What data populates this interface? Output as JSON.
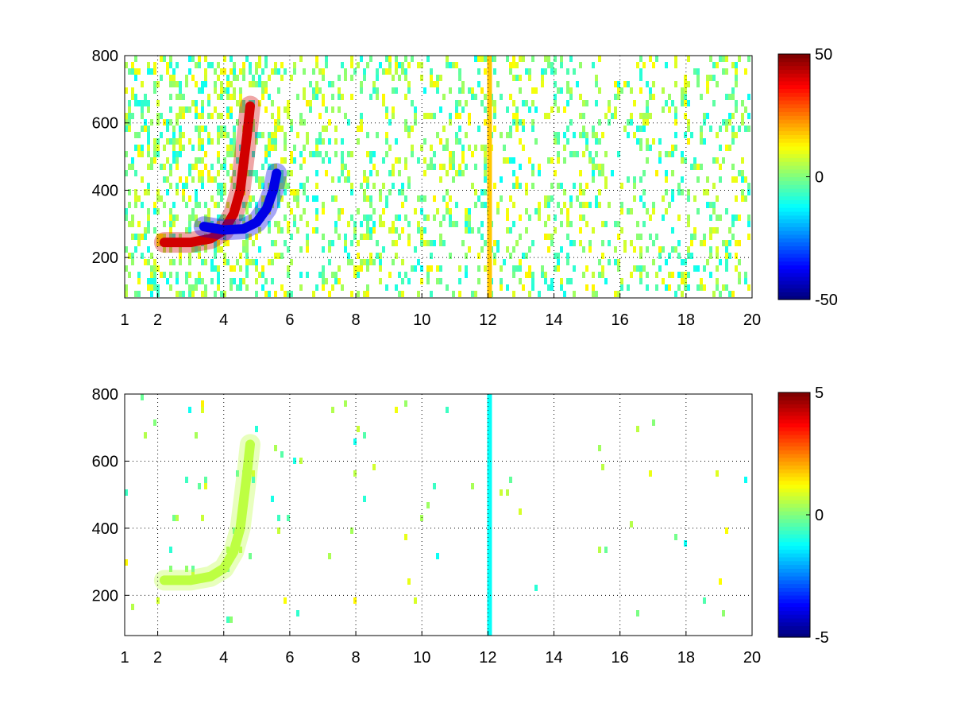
{
  "chart_data": [
    {
      "type": "heatmap",
      "title": "",
      "xlabel": "",
      "ylabel": "",
      "xlim": [
        1,
        20
      ],
      "ylim": [
        80,
        800
      ],
      "xticks": [
        1,
        2,
        4,
        6,
        8,
        10,
        12,
        14,
        16,
        18,
        20
      ],
      "yticks": [
        200,
        400,
        600,
        800
      ],
      "grid": true,
      "colormap": "jet",
      "clim": [
        -50,
        50
      ],
      "colorbar_ticks": [
        -50,
        0,
        50
      ],
      "features": [
        {
          "kind": "curve",
          "desc": "positive ridge",
          "value": 42,
          "points": [
            [
              2.2,
              245
            ],
            [
              3.0,
              245
            ],
            [
              3.6,
              256
            ],
            [
              4.0,
              280
            ],
            [
              4.3,
              330
            ],
            [
              4.5,
              400
            ],
            [
              4.6,
              480
            ],
            [
              4.7,
              560
            ],
            [
              4.8,
              650
            ]
          ]
        },
        {
          "kind": "curve",
          "desc": "negative ridge",
          "value": -40,
          "points": [
            [
              3.4,
              292
            ],
            [
              4.0,
              282
            ],
            [
              4.6,
              285
            ],
            [
              5.0,
              305
            ],
            [
              5.3,
              345
            ],
            [
              5.5,
              400
            ],
            [
              5.6,
              450
            ]
          ]
        },
        {
          "kind": "column",
          "x": 12.05,
          "value": 18
        }
      ]
    },
    {
      "type": "heatmap",
      "title": "",
      "xlabel": "",
      "ylabel": "",
      "xlim": [
        1,
        20
      ],
      "ylim": [
        80,
        800
      ],
      "xticks": [
        1,
        2,
        4,
        6,
        8,
        10,
        12,
        14,
        16,
        18,
        20
      ],
      "yticks": [
        200,
        400,
        600,
        800
      ],
      "grid": true,
      "colormap": "jet",
      "clim": [
        -5,
        5
      ],
      "colorbar_ticks": [
        -5,
        0,
        5
      ],
      "features": [
        {
          "kind": "curve",
          "desc": "weak ridge",
          "value": 0.6,
          "points": [
            [
              2.2,
              245
            ],
            [
              3.0,
              245
            ],
            [
              3.6,
              256
            ],
            [
              4.0,
              280
            ],
            [
              4.3,
              330
            ],
            [
              4.5,
              400
            ],
            [
              4.6,
              480
            ],
            [
              4.7,
              560
            ],
            [
              4.8,
              650
            ]
          ]
        },
        {
          "kind": "column",
          "x": 12.05,
          "value": -1.2
        }
      ]
    }
  ]
}
